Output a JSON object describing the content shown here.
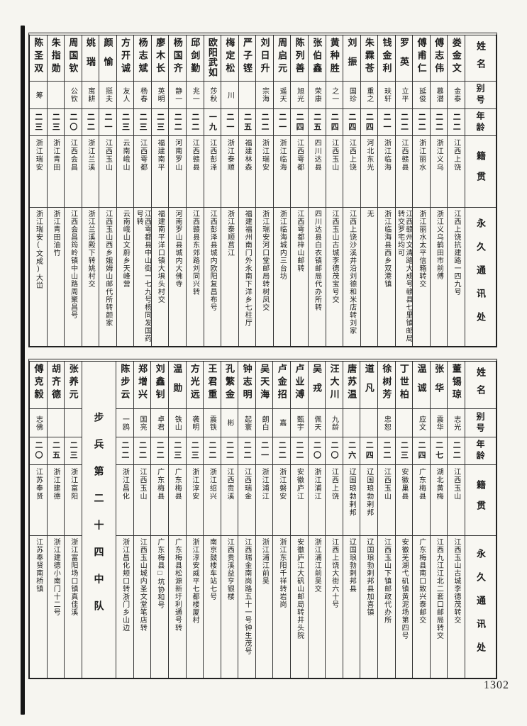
{
  "page": {
    "number": "1302"
  },
  "headers": {
    "name": "姓名",
    "alias": "别号",
    "age": "年龄",
    "native": "籍贯",
    "address": "永久通讯处"
  },
  "tables": [
    {
      "id": "top-roster",
      "persons": [
        {
          "name": "娄金文",
          "alias": "金泰",
          "age": "二二",
          "native": "江西上饶",
          "address": "江西上饶抗建路一四九号"
        },
        {
          "name": "傅志伟",
          "alias": "慕潜",
          "age": "二二",
          "native": "浙江义乌",
          "address": "浙江义乌鹤田市前傅"
        },
        {
          "name": "傅甫仁",
          "alias": "延俊",
          "age": "二二",
          "native": "浙江丽水",
          "address": "浙江丽水太平信箱转交"
        },
        {
          "name": "罗英",
          "alias": "立平",
          "age": "二二",
          "native": "江西赣县",
          "address": "江西赣州文清路大成号赣县七里镇邮局转交罗宅均可"
        },
        {
          "name": "钱金利",
          "alias": "玞轩",
          "age": "二一",
          "native": "浙江临海",
          "address": "浙江临海县西乡双港镇"
        },
        {
          "name": "朱霖苍",
          "alias": "重之",
          "age": "二四",
          "native": "河北东光",
          "address": "无"
        },
        {
          "name": "刘振",
          "alias": "国珍",
          "age": "二四",
          "native": "江西上饶",
          "address": "江西上饶沙溪井沿刘德和米店转刘家"
        },
        {
          "name": "黄种胜",
          "alias": "之一",
          "age": "二四",
          "native": "江西玉山",
          "address": "江西玉山古城李德茂宝号交"
        },
        {
          "name": "张伯鑫",
          "alias": "荣康",
          "age": "二五",
          "native": "四川达县",
          "address": "四川达县白衣镇邮局代办所转"
        },
        {
          "name": "陈列善",
          "alias": "旭光",
          "age": "二四",
          "native": "江西雩都",
          "address": "江西雩都梓山邮转"
        },
        {
          "name": "周启元",
          "alias": "遥天",
          "age": "二一",
          "native": "浙江临海",
          "address": "浙江临海城内三台坊"
        },
        {
          "name": "刘日升",
          "alias": "宗海",
          "age": "二二",
          "native": "浙江瑞安",
          "address": "浙江瑞安河口堂邮局转树凤交"
        },
        {
          "name": "严子铿",
          "alias": "",
          "age": "二五",
          "native": "福建林森",
          "address": "福建福州南门外永南下洋乡七柱厅"
        },
        {
          "name": "梅定松",
          "alias": "川",
          "age": "二一",
          "native": "浙江泰顺",
          "address": "浙江泰顺莒江"
        },
        {
          "name": "欧阳武如",
          "alias": "莎秋",
          "age": "一九",
          "native": "江西彭泽",
          "address": "江西彭泽县城内欧阳复昌布号"
        },
        {
          "name": "邱剑勤",
          "alias": "兆一",
          "age": "二二",
          "native": "江西赣县",
          "address": "江西赣县东郊路刘同兴转"
        },
        {
          "name": "杨国齐",
          "alias": "静一",
          "age": "二二",
          "native": "河南罗山",
          "address": "河南罗山县城内大佛寺"
        },
        {
          "name": "廖木长",
          "alias": "英明",
          "age": "二三",
          "native": "福建南平",
          "address": "福建南平洋口镇大埧头村交"
        },
        {
          "name": "杨志斌",
          "alias": "杨春",
          "age": "二三",
          "native": "江西雩都",
          "address": "江西雩都县中山街一七九号杨同发国药号转"
        },
        {
          "name": "方开诚",
          "alias": "友人",
          "age": "二三",
          "native": "云南峨山",
          "address": "云南峨山文蔚乡天峰营"
        },
        {
          "name": "颜愉",
          "alias": "挺夫",
          "age": "二一",
          "native": "江西玉山",
          "address": "江西玉山西乡娥姆山邮代所转颜家"
        },
        {
          "name": "姚瑞",
          "alias": "寓耕",
          "age": "二二",
          "native": "浙江兰溪",
          "address": "浙江兰溪殿下转姚村交"
        },
        {
          "name": "周国钦",
          "alias": "公钦",
          "age": "二〇",
          "native": "江西会昌",
          "address": "江西会昌筠岭镇中山路周聚昌号"
        },
        {
          "name": "朱指勋",
          "alias": "",
          "age": "二三",
          "native": "浙江青田",
          "address": "浙江青田油竹"
        },
        {
          "name": "陈圣双",
          "alias": "筹",
          "age": "二三",
          "native": "浙江瑞安",
          "address": "浙江瑞安(文成)大峃"
        }
      ]
    },
    {
      "id": "bottom-roster",
      "persons": [
        {
          "name": "董锡琼",
          "alias": "志光",
          "age": "二二",
          "native": "江西玉山",
          "address": "江西玉山古城李德茂转交"
        },
        {
          "name": "张华",
          "alias": "震华",
          "age": "二七",
          "native": "湖北黄梅",
          "address": "江西九江江北二套口邮局转交"
        },
        {
          "name": "温诚",
          "alias": "应文",
          "age": "二四",
          "native": "广东梅县",
          "address": "广东梅县南口致兴泰邮交"
        },
        {
          "name": "丁世柏",
          "alias": "",
          "age": "二三",
          "native": "安徽巢县",
          "address": "安徽芜湖弋矶镇黄泥场第四号"
        },
        {
          "name": "徐树芳",
          "alias": "忠恕",
          "age": "二二",
          "native": "江西玉山",
          "address": "江西玉山下镇邮政代办所"
        },
        {
          "name": "道凡",
          "alias": "",
          "age": "二四",
          "native": "辽国琅勃剌邦",
          "address": "辽国琅勃剌邦县加喜镇"
        },
        {
          "name": "唐苏温",
          "alias": "",
          "age": "二六",
          "native": "辽国琅勃剌邦",
          "address": "辽国琅勃剌邦县"
        },
        {
          "name": "汪大川",
          "alias": "九龄",
          "age": "二〇",
          "native": "江西上饶",
          "address": "江西上饶大街六十号"
        },
        {
          "name": "吴戎",
          "alias": "佩天",
          "age": "二〇",
          "native": "浙江浦江",
          "address": "浙江浦江前吴交"
        },
        {
          "name": "卢业溥",
          "alias": "甄宇",
          "age": "二二",
          "native": "安徽庐江",
          "address": "安徽庐江大矾山邮局转井头院"
        },
        {
          "name": "卢金招",
          "alias": "嘉",
          "age": "二二",
          "native": "浙江磐安",
          "address": "浙江东阳千祥转岩岗"
        },
        {
          "name": "吴天海",
          "alias": "朗白",
          "age": "二一",
          "native": "浙江浦江",
          "address": "浙江浦江前吴"
        },
        {
          "name": "钟志明",
          "alias": "起寰",
          "age": "二二",
          "native": "江西瑞金",
          "address": "江西瑞金南岗路五十一号钟生茂号"
        },
        {
          "name": "孔繁金",
          "alias": "彬",
          "age": "二二",
          "native": "江西贵溪",
          "address": "江西贵溪益亨银楼"
        },
        {
          "name": "王君重",
          "alias": "震铁",
          "age": "二二",
          "native": "浙江绍兴",
          "address": "南京鼓楼车站七号"
        },
        {
          "name": "方光远",
          "alias": "袭明",
          "age": "二三",
          "native": "浙江淳安",
          "address": "浙江淳安威平七都楼厦村"
        },
        {
          "name": "温勋",
          "alias": "铁山",
          "age": "二三",
          "native": "广东梅县",
          "address": "广东梅县松源新圩利通号转"
        },
        {
          "name": "刘鑫钊",
          "alias": "卓君",
          "age": "二二",
          "native": "广东梅县",
          "address": "广东梅县□坑协和号"
        },
        {
          "name": "郑增兴",
          "alias": "国亮",
          "age": "二二",
          "native": "江西玉山",
          "address": "江西玉山城内圣文堂笔店转"
        },
        {
          "name": "陈步云",
          "alias": "一鸥",
          "age": "二二",
          "native": "浙江昌化",
          "address": "浙江昌化颊口转浙门乡山边"
        },
        {
          "unit_label": "步兵第二十四中队"
        },
        {
          "name": "张养元",
          "alias": "",
          "age": "二三",
          "native": "浙江富阳",
          "address": "浙江富阳场口镇真佳溪"
        },
        {
          "name": "胡齐德",
          "alias": "",
          "age": "二五",
          "native": "浙江建德",
          "address": "浙江建德小南门十二号"
        },
        {
          "name": "傅克毅",
          "alias": "志佛",
          "age": "二〇",
          "native": "江苏奉贤",
          "address": "江苏奉贤南桥镇"
        }
      ]
    }
  ]
}
